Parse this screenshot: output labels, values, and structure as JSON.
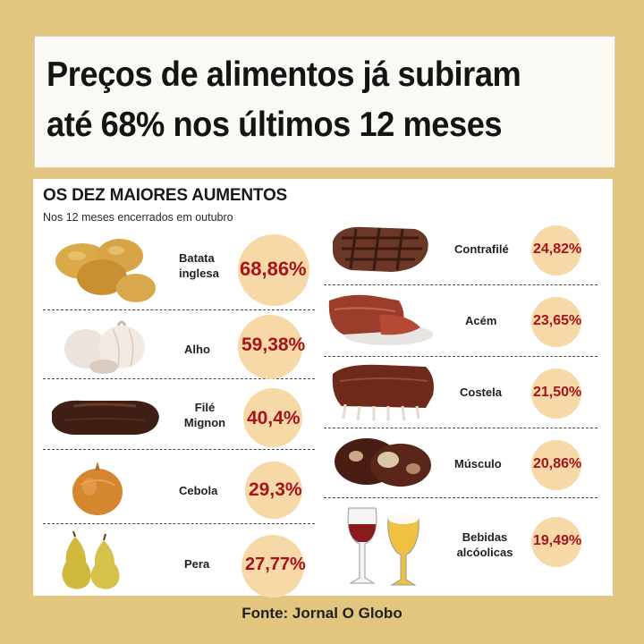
{
  "headline": [
    "Preços de alimentos já subiram",
    "até 68% nos últimos 12 meses"
  ],
  "panel": {
    "title": "OS DEZ MAIORES AUMENTOS",
    "subtitle": "Nos 12 meses encerrados em outubro"
  },
  "left_items": [
    {
      "label": "Batata inglesa",
      "pct": "68,86%",
      "icon": "potato-icon",
      "value": 68.86
    },
    {
      "label": "Alho",
      "pct": "59,38%",
      "icon": "garlic-icon",
      "value": 59.38
    },
    {
      "label": "Filé Mignon",
      "pct": "40,4%",
      "icon": "filet-mignon-icon",
      "value": 40.4
    },
    {
      "label": "Cebola",
      "pct": "29,3%",
      "icon": "onion-icon",
      "value": 29.3
    },
    {
      "label": "Pera",
      "pct": "27,77%",
      "icon": "pear-icon",
      "value": 27.77
    }
  ],
  "right_items": [
    {
      "label": "Contrafilé",
      "pct": "24,82%",
      "icon": "sirloin-icon",
      "value": 24.82
    },
    {
      "label": "Acém",
      "pct": "23,65%",
      "icon": "chuck-roast-icon",
      "value": 23.65
    },
    {
      "label": "Costela",
      "pct": "21,50%",
      "icon": "ribs-icon",
      "value": 21.5
    },
    {
      "label": "Músculo",
      "pct": "20,86%",
      "icon": "beef-shank-icon",
      "value": 20.86
    },
    {
      "label": "Bebidas alcóolicas",
      "pct": "19,49%",
      "icon": "wine-beer-icon",
      "value": 19.49
    }
  ],
  "source": "Fonte: Jornal O Globo",
  "colors": {
    "background": "#e2c57e",
    "circle": "#f7d9a8",
    "percent": "#a4141c"
  }
}
